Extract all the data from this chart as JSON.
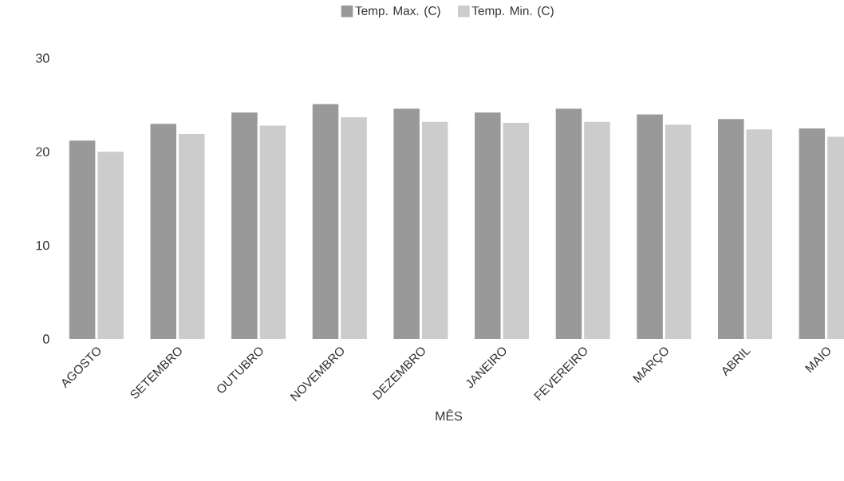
{
  "chart_data": {
    "type": "bar",
    "xlabel": "MÊS",
    "legend": "top",
    "categories": [
      "AGOSTO",
      "SETEMBRO",
      "OUTUBRO",
      "NOVEMBRO",
      "DEZEMBRO",
      "JANEIRO",
      "FEVEREIRO",
      "MARÇO",
      "ABRIL",
      "MAIO"
    ],
    "series": [
      {
        "name": "Temp. Max. (C)",
        "color": "#999999",
        "values": [
          21.2,
          23.0,
          24.2,
          25.1,
          24.6,
          24.2,
          24.6,
          24.0,
          23.5,
          22.5
        ]
      },
      {
        "name": "Temp. Min. (C)",
        "color": "#cccccc",
        "values": [
          20.0,
          21.9,
          22.8,
          23.7,
          23.2,
          23.1,
          23.2,
          22.9,
          22.4,
          21.6
        ]
      }
    ],
    "ylim": [
      0,
      30
    ],
    "yticks": [
      0,
      10,
      20,
      30
    ]
  }
}
